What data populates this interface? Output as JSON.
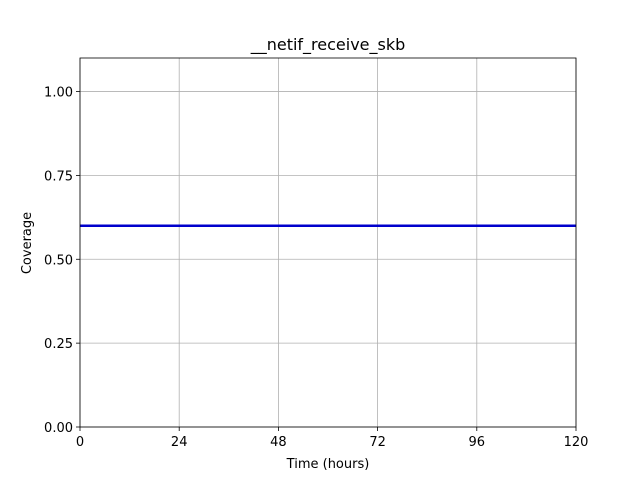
{
  "chart_data": {
    "type": "line",
    "title": "__netif_receive_skb",
    "xlabel": "Time (hours)",
    "ylabel": "Coverage",
    "xlim": [
      0,
      120
    ],
    "ylim": [
      0,
      1.1
    ],
    "x_ticks": [
      0,
      24,
      48,
      72,
      96,
      120
    ],
    "x_tick_labels": [
      "0",
      "24",
      "48",
      "72",
      "96",
      "120"
    ],
    "y_ticks": [
      0,
      0.25,
      0.5,
      0.75,
      1.0
    ],
    "y_tick_labels": [
      "0.00",
      "0.25",
      "0.50",
      "0.75",
      "1.00"
    ],
    "grid": true,
    "series": [
      {
        "color": "#0000cc",
        "x": [
          0,
          120
        ],
        "y": [
          0.6,
          0.6
        ]
      }
    ]
  }
}
